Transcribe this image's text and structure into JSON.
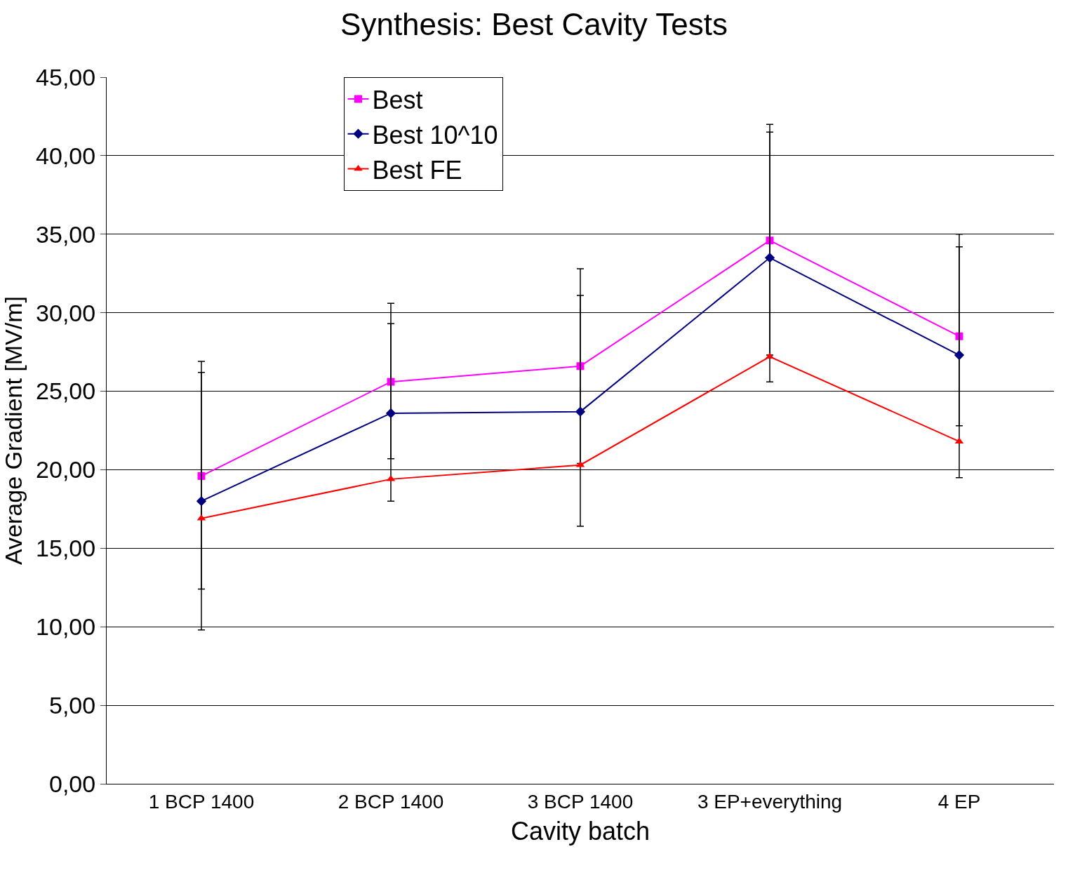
{
  "chart_data": {
    "type": "line",
    "title": "Synthesis: Best Cavity Tests",
    "xlabel": "Cavity batch",
    "ylabel": "Average Gradient [MV/m]",
    "categories": [
      "1 BCP 1400",
      "2 BCP 1400",
      "3 BCP 1400",
      "3 EP+everything",
      "4 EP"
    ],
    "ylim": [
      0,
      45
    ],
    "yticks": [
      {
        "value": 0,
        "label": "0,00"
      },
      {
        "value": 5,
        "label": "5,00"
      },
      {
        "value": 10,
        "label": "10,00"
      },
      {
        "value": 15,
        "label": "15,00"
      },
      {
        "value": 20,
        "label": "20,00"
      },
      {
        "value": 25,
        "label": "25,00"
      },
      {
        "value": 30,
        "label": "30,00"
      },
      {
        "value": 35,
        "label": "35,00"
      },
      {
        "value": 40,
        "label": "40,00"
      },
      {
        "value": 45,
        "label": "45,00"
      }
    ],
    "grid": "y",
    "legend": "top left",
    "series": [
      {
        "name": "Best",
        "color": "#ff00ff",
        "marker": "square",
        "values": [
          19.6,
          25.6,
          26.6,
          34.6,
          28.5
        ],
        "errors": [
          [
            12.4,
            26.9
          ],
          [
            20.7,
            30.6
          ],
          [
            20.4,
            32.8
          ],
          [
            27.3,
            42.0
          ],
          [
            22.8,
            35.0
          ]
        ]
      },
      {
        "name": "Best 10^10",
        "color": "#000080",
        "marker": "diamond",
        "values": [
          18.0,
          23.6,
          23.7,
          33.5,
          27.3
        ],
        "errors": [
          [
            9.8,
            26.2
          ],
          [
            18.0,
            29.3
          ],
          [
            16.4,
            31.1
          ],
          [
            25.6,
            41.5
          ],
          [
            19.5,
            34.2
          ]
        ]
      },
      {
        "name": "Best FE",
        "color": "#ff0000",
        "marker": "triangle",
        "values": [
          16.9,
          19.4,
          20.3,
          27.2,
          21.8
        ]
      }
    ]
  }
}
